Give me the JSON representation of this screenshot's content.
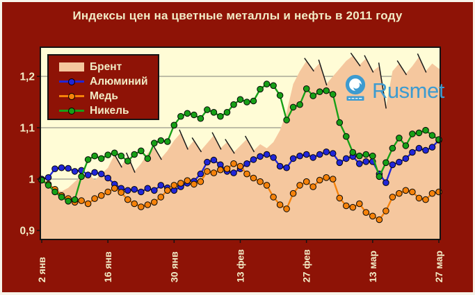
{
  "figure": {
    "watermark": {
      "wordmark": "Rusmet"
    },
    "colors": {
      "background": "#8E1306",
      "frame": "#F7F4EA",
      "text": "#F2ECC6",
      "plot_background": "#FFFCD6",
      "grid": "#97978A",
      "axis_border": "#141414",
      "logo_blue": "#3D9BD0"
    }
  },
  "chart_data": {
    "type": "area",
    "title": "Индексы цен на цветные металлы и нефть в 2011 году",
    "subtitle": "",
    "xlabel": "",
    "ylabel": "",
    "grid": "horizontal",
    "legend_position": "top-left",
    "x_axis": {
      "tick_labels": [
        "2 янв",
        "16 янв",
        "30 янв",
        "13 фев",
        "27 фев",
        "13 мар",
        "27 мар"
      ],
      "tick_point_indices": [
        0,
        10,
        20,
        30,
        40,
        50,
        60
      ]
    },
    "y_axis": {
      "ticks": [
        {
          "value": 0.9,
          "label": "0,9"
        },
        {
          "value": 1.0,
          "label": "1"
        },
        {
          "value": 1.1,
          "label": "1,1"
        },
        {
          "value": 1.2,
          "label": "1,2"
        }
      ],
      "range": [
        0.882,
        1.257
      ]
    },
    "series": [
      {
        "name": "Брент",
        "type": "area",
        "color": "#F5C79E",
        "values": [
          1.0,
          0.992,
          0.982,
          0.976,
          0.983,
          0.995,
          1.005,
          1.012,
          0.998,
          1.01,
          1.022,
          1.048,
          1.025,
          1.045,
          1.015,
          1.03,
          1.05,
          1.062,
          1.04,
          1.055,
          1.075,
          1.09,
          1.06,
          1.075,
          1.055,
          1.07,
          1.085,
          1.06,
          1.072,
          1.052,
          1.065,
          1.078,
          1.055,
          1.068,
          1.06,
          1.072,
          1.095,
          1.13,
          1.185,
          1.21,
          1.23,
          1.212,
          1.226,
          1.185,
          1.2,
          1.215,
          1.23,
          1.24,
          1.222,
          1.235,
          1.21,
          1.22,
          1.14,
          1.21,
          1.225,
          1.205,
          1.22,
          1.238,
          1.21,
          1.225,
          1.215
        ]
      },
      {
        "name": "Алюминий",
        "type": "line",
        "color": "#2126D8",
        "marker": "circle",
        "values": [
          1.0,
          1.003,
          1.02,
          1.022,
          1.021,
          1.015,
          1.017,
          1.008,
          1.013,
          1.01,
          1.002,
          0.99,
          0.982,
          0.978,
          0.98,
          0.975,
          0.982,
          0.978,
          0.988,
          0.983,
          0.978,
          0.985,
          0.992,
          0.996,
          1.01,
          1.033,
          1.037,
          1.028,
          1.015,
          1.012,
          1.02,
          1.03,
          1.038,
          1.044,
          1.048,
          1.042,
          1.025,
          1.022,
          1.04,
          1.045,
          1.048,
          1.042,
          1.048,
          1.053,
          1.05,
          1.032,
          1.04,
          1.044,
          1.03,
          1.034,
          1.034,
          1.01,
          0.993,
          1.028,
          1.033,
          1.04,
          1.052,
          1.06,
          1.056,
          1.062,
          1.076
        ]
      },
      {
        "name": "Медь",
        "type": "line",
        "color": "#F5820A",
        "marker": "circle",
        "values": [
          0.998,
          0.99,
          0.98,
          0.968,
          0.962,
          0.955,
          0.958,
          0.952,
          0.962,
          0.968,
          0.975,
          0.982,
          0.974,
          0.96,
          0.952,
          0.946,
          0.95,
          0.955,
          0.965,
          0.978,
          0.988,
          0.992,
          0.997,
          0.99,
          0.995,
          1.015,
          1.012,
          1.018,
          1.02,
          1.03,
          1.025,
          1.01,
          1.002,
          0.995,
          0.988,
          0.965,
          0.95,
          0.942,
          0.972,
          0.988,
          0.995,
          0.985,
          0.998,
          1.003,
          1.0,
          0.963,
          0.948,
          0.945,
          0.952,
          0.935,
          0.928,
          0.921,
          0.938,
          0.965,
          0.972,
          0.978,
          0.975,
          0.963,
          0.96,
          0.972,
          0.975
        ]
      },
      {
        "name": "Никель",
        "type": "line",
        "color": "#17A017",
        "marker": "circle",
        "values": [
          0.998,
          0.988,
          0.975,
          0.965,
          0.957,
          0.96,
          1.005,
          1.038,
          1.045,
          1.04,
          1.047,
          1.051,
          1.045,
          1.035,
          1.048,
          1.055,
          1.04,
          1.07,
          1.075,
          1.073,
          1.105,
          1.122,
          1.128,
          1.125,
          1.118,
          1.135,
          1.13,
          1.122,
          1.13,
          1.145,
          1.155,
          1.15,
          1.152,
          1.175,
          1.185,
          1.182,
          1.163,
          1.115,
          1.14,
          1.145,
          1.176,
          1.162,
          1.17,
          1.172,
          1.165,
          1.11,
          1.083,
          1.052,
          1.045,
          1.048,
          1.045,
          1.005,
          1.032,
          1.06,
          1.08,
          1.065,
          1.088,
          1.09,
          1.095,
          1.085,
          1.077
        ]
      }
    ]
  }
}
